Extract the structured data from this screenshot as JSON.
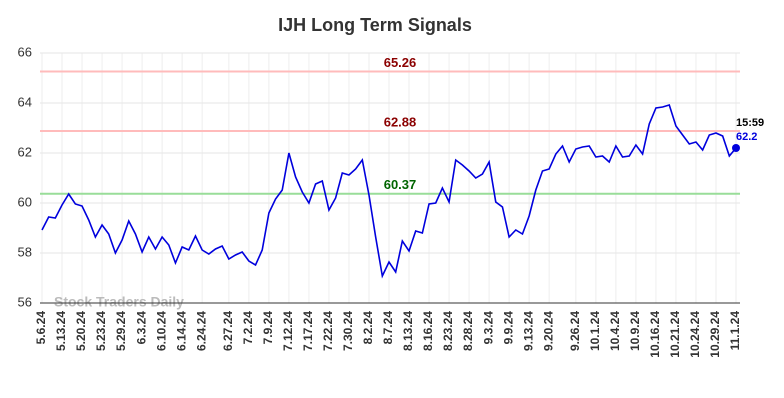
{
  "chart_data": {
    "type": "line",
    "title": "IJH Long Term Signals",
    "watermark": "Stock Traders Daily",
    "last_time": "15:59",
    "categories": [
      "5.6.24",
      null,
      null,
      "5.13.24",
      null,
      null,
      "5.20.24",
      null,
      null,
      "5.23.24",
      null,
      null,
      "5.29.24",
      null,
      null,
      "6.3.24",
      null,
      null,
      "6.10.24",
      null,
      null,
      "6.14.24",
      null,
      null,
      "6.24.24",
      null,
      null,
      null,
      "6.27.24",
      null,
      null,
      "7.2.24",
      null,
      null,
      "7.9.24",
      null,
      null,
      "7.12.24",
      null,
      null,
      "7.17.24",
      null,
      null,
      "7.22.24",
      null,
      null,
      "7.30.24",
      null,
      null,
      "8.2.24",
      null,
      null,
      "8.7.24",
      null,
      null,
      "8.13.24",
      null,
      null,
      "8.16.24",
      null,
      null,
      "8.23.24",
      null,
      null,
      "8.28.24",
      null,
      null,
      "9.3.24",
      null,
      null,
      "9.9.24",
      null,
      null,
      "9.13.24",
      null,
      null,
      "9.20.24",
      null,
      null,
      null,
      "9.26.24",
      null,
      null,
      "10.1.24",
      null,
      null,
      "10.4.24",
      null,
      null,
      "10.9.24",
      null,
      null,
      "10.16.24",
      null,
      null,
      "10.21.24",
      null,
      null,
      "10.24.24",
      null,
      null,
      "10.29.24",
      null,
      null,
      "11.1.24"
    ],
    "series": [
      {
        "color": "#0000dd",
        "values": [
          58.92,
          59.44,
          59.4,
          59.92,
          60.36,
          59.96,
          59.88,
          59.32,
          58.64,
          59.12,
          58.76,
          58.0,
          58.52,
          59.28,
          58.76,
          58.04,
          58.64,
          58.16,
          58.64,
          58.32,
          57.6,
          58.24,
          58.12,
          58.68,
          58.12,
          57.96,
          58.16,
          58.28,
          57.76,
          57.92,
          58.04,
          57.68,
          57.52,
          58.12,
          59.6,
          60.16,
          60.52,
          62.0,
          61.04,
          60.44,
          60.0,
          60.76,
          60.88,
          59.72,
          60.2,
          61.2,
          61.12,
          61.36,
          61.72,
          60.32,
          58.64,
          57.08,
          57.64,
          57.24,
          58.48,
          58.08,
          58.88,
          58.8,
          59.96,
          60.0,
          60.6,
          60.04,
          61.72,
          61.52,
          61.28,
          61.0,
          61.16,
          61.64,
          60.04,
          59.84,
          58.64,
          58.92,
          58.76,
          59.48,
          60.52,
          61.28,
          61.36,
          61.96,
          62.28,
          61.64,
          62.16,
          62.24,
          62.28,
          61.84,
          61.88,
          61.64,
          62.28,
          61.84,
          61.88,
          62.32,
          61.96,
          63.16,
          63.8,
          63.84,
          63.92,
          63.08,
          62.72,
          62.36,
          62.44,
          62.12,
          62.72,
          62.8,
          62.68,
          61.88,
          62.2
        ]
      }
    ],
    "hlines": [
      {
        "value": 65.26,
        "color": "#ffbbbb",
        "label_color": "#8b0000"
      },
      {
        "value": 62.88,
        "color": "#ffbbbb",
        "label_color": "#8b0000"
      },
      {
        "value": 60.37,
        "color": "#99dd99",
        "label_color": "#006400"
      }
    ],
    "ylim": [
      56,
      66
    ],
    "yticks": [
      56,
      58,
      60,
      62,
      64,
      66
    ],
    "grid": true
  }
}
